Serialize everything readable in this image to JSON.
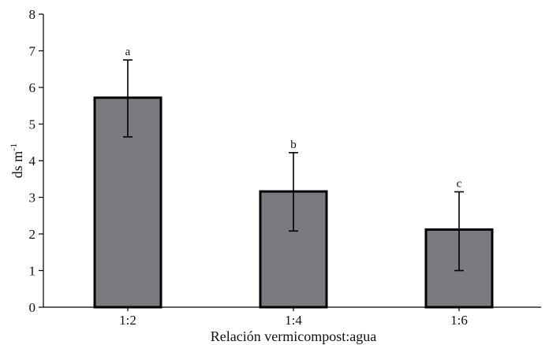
{
  "chart_data": {
    "type": "bar",
    "categories": [
      "1:2",
      "1:4",
      "1:6"
    ],
    "values": [
      5.72,
      3.16,
      2.12
    ],
    "error_lower": [
      4.65,
      2.08,
      1.0
    ],
    "error_upper": [
      6.75,
      4.22,
      3.15
    ],
    "significance_labels": [
      "a",
      "b",
      "c"
    ],
    "xlabel": "Relación vermicompost:agua",
    "ylabel_main": "ds m",
    "ylabel_sup": "-1",
    "ylim": [
      0,
      8
    ],
    "yticks": [
      0,
      1,
      2,
      3,
      4,
      5,
      6,
      7,
      8
    ],
    "grid": false,
    "bar_color": "#7a7b80",
    "bar_edge_color": "#000000"
  }
}
